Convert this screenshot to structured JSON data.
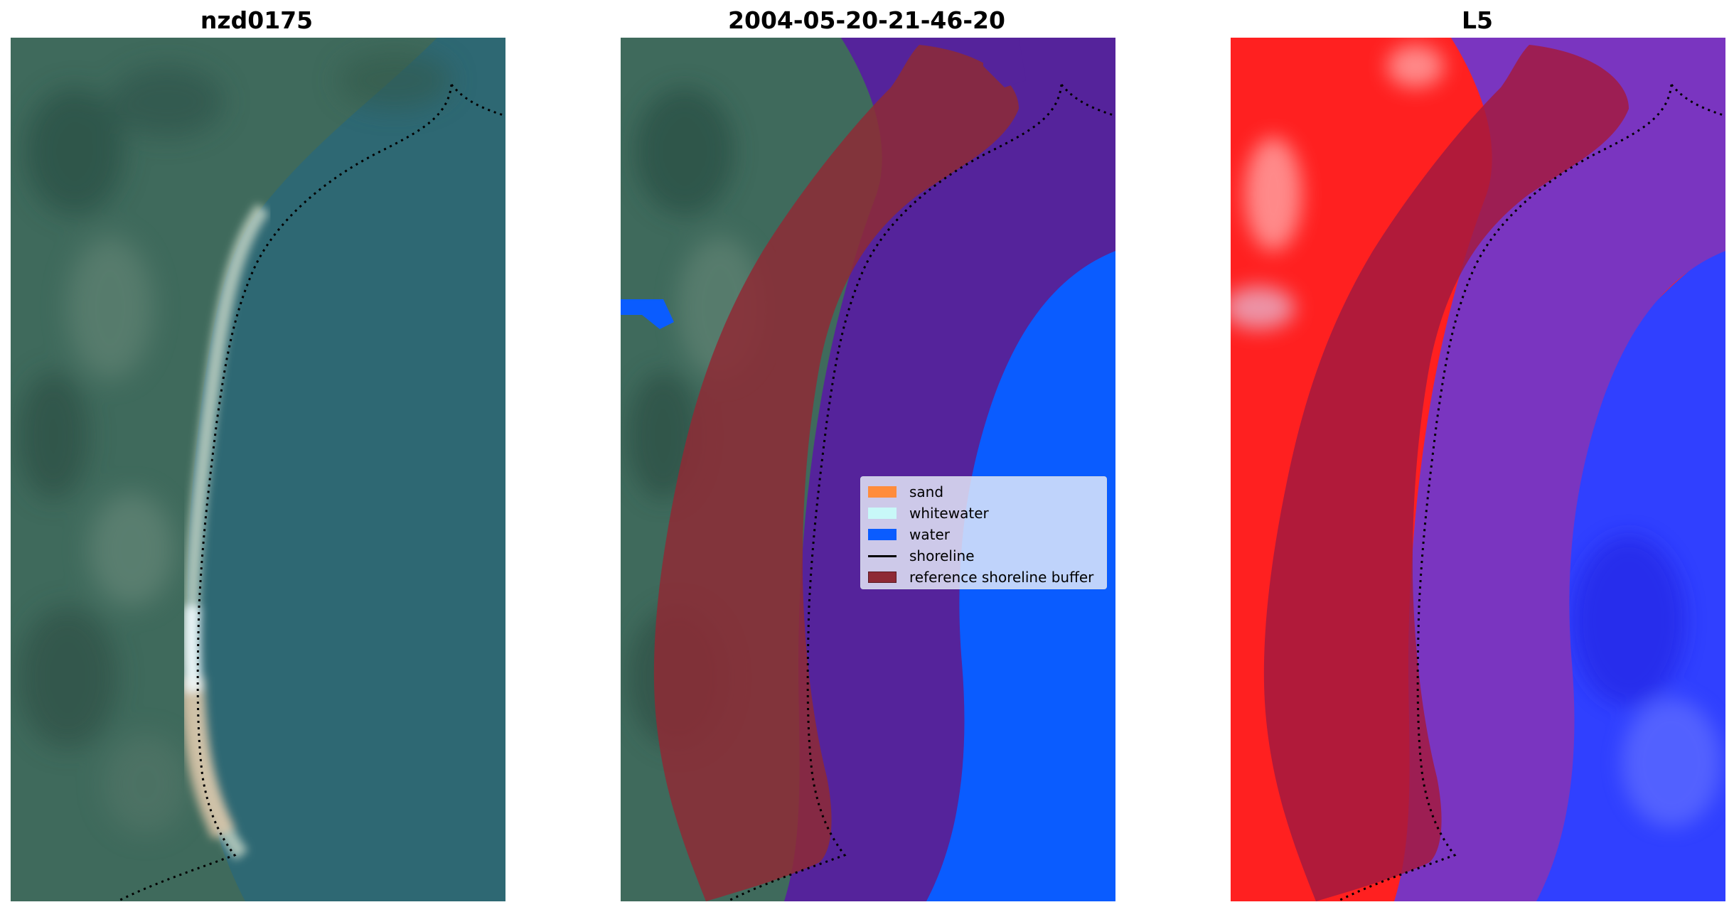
{
  "panels": [
    {
      "title": "nzd0175"
    },
    {
      "title": "2004-05-20-21-46-20"
    },
    {
      "title": "L5"
    }
  ],
  "legend": {
    "items": [
      {
        "label": "sand",
        "color": "#ff8c3c"
      },
      {
        "label": "whitewater",
        "color": "#c8f8f8"
      },
      {
        "label": "water",
        "color": "#0a5cff"
      },
      {
        "label": "shoreline",
        "color": "#000000"
      },
      {
        "label": "reference shoreline buffer",
        "color": "#8e2a35"
      }
    ]
  },
  "colors": {
    "land": "#3d6a5f",
    "sea": "#2f6a7a",
    "buffer": "#8e2a35",
    "water_class": "#0a5cff",
    "land_index": "#ff2020",
    "water_index": "#3040ff"
  }
}
